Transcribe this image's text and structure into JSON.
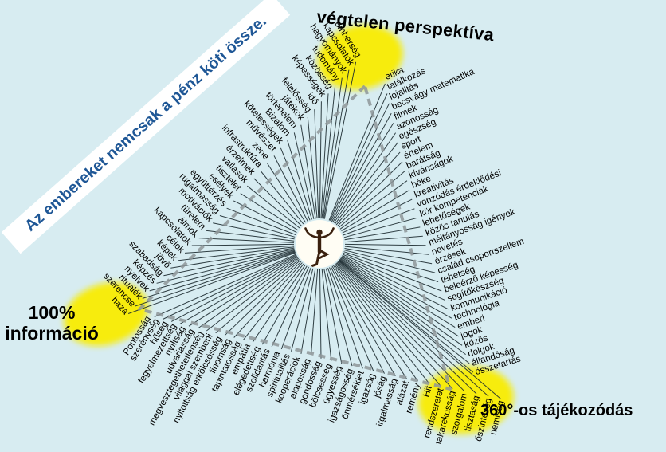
{
  "colors": {
    "background": "#d7ecf1",
    "highlight": "#f7ec11",
    "dashed_edge": "#8e9699",
    "ray_line": "#1c2b30",
    "label_text": "#000000",
    "banner_bg": "#ffffff",
    "banner_text": "#1f5796",
    "title_text": "#000000",
    "figure": "#3a200e",
    "circle_fill": "#fffdf4"
  },
  "banner": {
    "text": "Az embereket nemcsak a pénz köti össze."
  },
  "titles": {
    "top": "végtelen perspektíva",
    "bottom_left_line1": "100%",
    "bottom_left_line2": "információ",
    "bottom_right": "360°-os tájékozódás"
  },
  "center": {
    "icon": "dancing-figure"
  },
  "edge_labels": {
    "left": [
      "emberség",
      "kapcsolatok",
      "hagyományok",
      "tudomány",
      "közösség",
      "képességek",
      "idő",
      "felelősség",
      "játékok",
      "történelem",
      "Bizalom",
      "kötelességek",
      "művészet",
      "zene",
      "infrastruktúra",
      "érzelmek",
      "vallások",
      "tisztelet",
      "esélyek",
      "együttérzés",
      "rugalmasság",
      "motivációk",
      "türelem",
      "álmok",
      "kapcsolatok",
      "célok",
      "képek",
      "jövő",
      "szabadság",
      "képzés",
      "nyelvek",
      "rituálék",
      "szerencse",
      "haza"
    ],
    "bottom": [
      "Pontosság",
      "szerénység",
      "hűség",
      "fegyelmezettség",
      "nyíltság",
      "udvariasság",
      "megvesztegethetetlenség",
      "világgal szembeni",
      "nyitottság erkölcsösség",
      "finomság",
      "tapintatosság",
      "empátia",
      "elégedettség",
      "szolidaritás",
      "harmónia",
      "spiritualitás",
      "kooperációk",
      "alaposság",
      "gondosság",
      "bölcsesség",
      "ügyesség",
      "igazságosság",
      "önmérséklet",
      "igazság",
      "jóság",
      "irgalmasság",
      "alázat",
      "remény",
      "Hit",
      "rendszeretet",
      "takarékosság",
      "szorgalom",
      "tisztaság",
      "őszinteség",
      "nemiség"
    ],
    "right": [
      "etika",
      "találkozás",
      "lojalitás",
      "becsvágy matematika",
      "filmek",
      "azonosság",
      "egészség",
      "sport",
      "értelem",
      "barátság",
      "kívánságok",
      "béke",
      "kreativitás",
      "vonzódás érdeklődési",
      "kör kompetenciák",
      "lehetőségek",
      "közös tanulás",
      "méltányosság igények",
      "nevetés",
      "érzések",
      "család csoportszellem",
      "tehetség",
      "beleérző képesség",
      "segítőkészség",
      "kommunikáció",
      "technológia",
      "emberi",
      "jogok",
      "közös",
      "dolgok",
      "állandóság",
      "összetartás"
    ]
  }
}
